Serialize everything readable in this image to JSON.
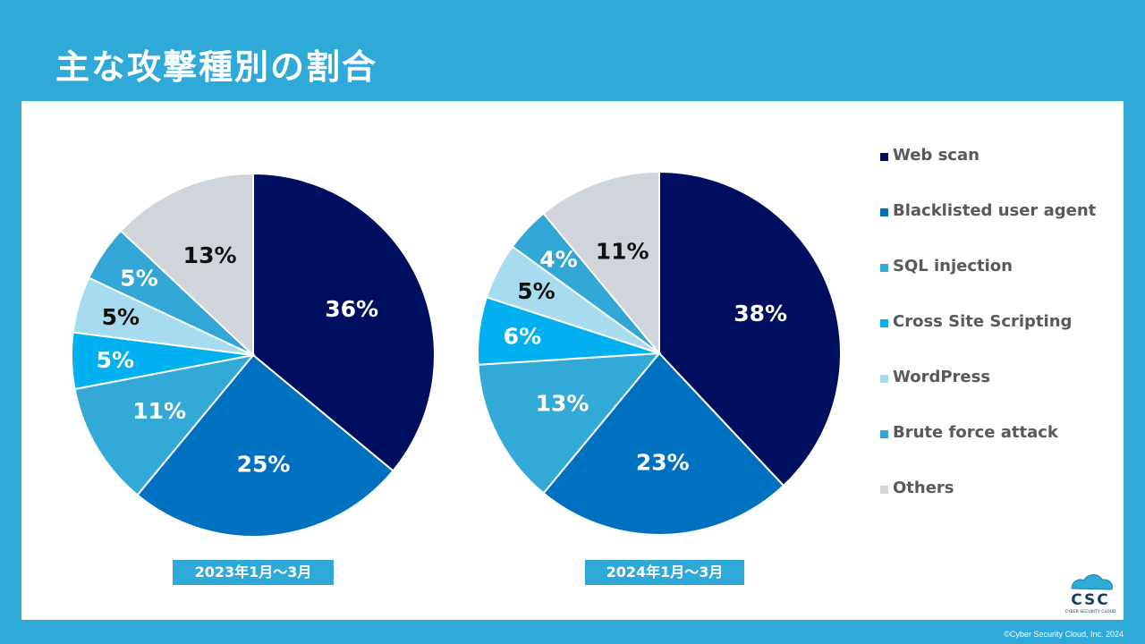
{
  "title": "主な攻撃種別の割合",
  "colors": {
    "Web scan": "#000e60",
    "Blacklisted user agent": "#0070c0",
    "SQL injection": "#33a9d8",
    "Cross Site Scripting": "#00b0f0",
    "WordPress": "#a7dcf0",
    "Brute force attack": "#32a7d6",
    "Others": "#d0d5dc"
  },
  "chart_data": [
    {
      "type": "pie",
      "title": "",
      "period_label": "2023年1月〜3月",
      "slices": [
        {
          "name": "Web scan",
          "value": 36,
          "label": "36%"
        },
        {
          "name": "Blacklisted user agent",
          "value": 25,
          "label": "25%"
        },
        {
          "name": "SQL injection",
          "value": 11,
          "label": "11%"
        },
        {
          "name": "Cross Site Scripting",
          "value": 5,
          "label": "5%"
        },
        {
          "name": "WordPress",
          "value": 5,
          "label": "5%"
        },
        {
          "name": "Brute force attack",
          "value": 5,
          "label": "5%"
        },
        {
          "name": "Others",
          "value": 13,
          "label": "13%"
        }
      ]
    },
    {
      "type": "pie",
      "title": "",
      "period_label": "2024年1月〜3月",
      "slices": [
        {
          "name": "Web scan",
          "value": 38,
          "label": "38%"
        },
        {
          "name": "Blacklisted user agent",
          "value": 23,
          "label": "23%"
        },
        {
          "name": "SQL injection",
          "value": 13,
          "label": "13%"
        },
        {
          "name": "Cross Site Scripting",
          "value": 6,
          "label": "6%"
        },
        {
          "name": "WordPress",
          "value": 5,
          "label": "5%"
        },
        {
          "name": "Brute force attack",
          "value": 4,
          "label": "4%"
        },
        {
          "name": "Others",
          "value": 11,
          "label": "11%"
        }
      ]
    }
  ],
  "legend": {
    "position": "right",
    "items": [
      "Web scan",
      "Blacklisted user agent",
      "SQL injection",
      "Cross Site Scripting",
      "WordPress",
      "Brute force attack",
      "Others"
    ]
  },
  "logo": {
    "text": "CSC",
    "subtext": "CYBER SECURITY CLOUD",
    "icon": "cloud-icon"
  },
  "copyright": "©Cyber Security Cloud, Inc. 2024"
}
